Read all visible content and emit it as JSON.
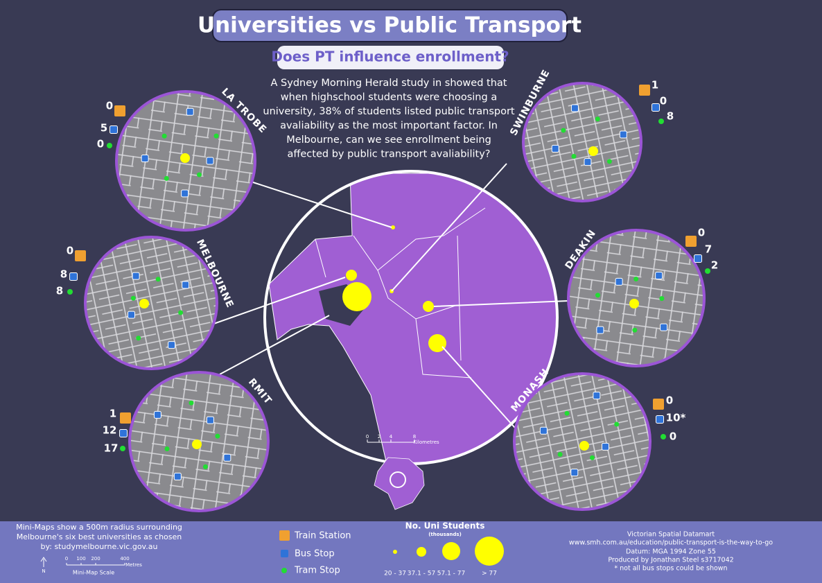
{
  "header": {
    "title": "Universities vs Public Transport",
    "subtitle": "Does PT influence enrollment?"
  },
  "intro": [
    "A Sydney Morning Herald study in showed that",
    "when highschool students were choosing a",
    "university, 38% of students listed public transport",
    "avaliability as the most important factor. In",
    "Melbourne, can we see enrollment being",
    "affected by public transport avaliability?"
  ],
  "universities": [
    {
      "name": "LA TROBE",
      "train": 0,
      "bus": 5,
      "tram": 0
    },
    {
      "name": "SWINBURNE",
      "train": 1,
      "bus": 0,
      "tram": 8
    },
    {
      "name": "MELBOURNE",
      "train": 0,
      "bus": 8,
      "tram": 8
    },
    {
      "name": "DEAKIN",
      "train": 0,
      "bus": 7,
      "tram": 2
    },
    {
      "name": "RMIT",
      "train": 1,
      "bus": 12,
      "tram": 17
    },
    {
      "name": "MONASH",
      "train": 0,
      "bus": "10*",
      "tram": 0
    }
  ],
  "map_scale": {
    "ticks": [
      "0",
      "2",
      "4",
      "8"
    ],
    "unit": "Kilometres"
  },
  "footer": {
    "note": [
      "Mini-Maps show a 500m radius surrounding",
      "Melbourne's six best universities as chosen",
      "by: studymelbourne.vic.gov.au"
    ],
    "north": "N",
    "mini_scale": {
      "ticks": [
        "0",
        "100",
        "200",
        "400"
      ],
      "unit": "Metres",
      "title": "Mini-Map Scale"
    },
    "legend": [
      "Train Station",
      "Bus Stop",
      "Tram Stop"
    ],
    "size_legend": {
      "title": "No. Uni Students",
      "subtitle": "(thousands)",
      "classes": [
        "20 - 37",
        "37.1 - 57",
        "57.1 - 77",
        "> 77"
      ]
    },
    "credits": [
      "Victorian Spatial Datamart",
      "www.smh.com.au/education/public-transport-is-the-way-to-go",
      "Datum: MGA 1994 Zone 55",
      "Produced by Jonathan Steel s3717042",
      "* not all bus stops could be shown"
    ]
  }
}
